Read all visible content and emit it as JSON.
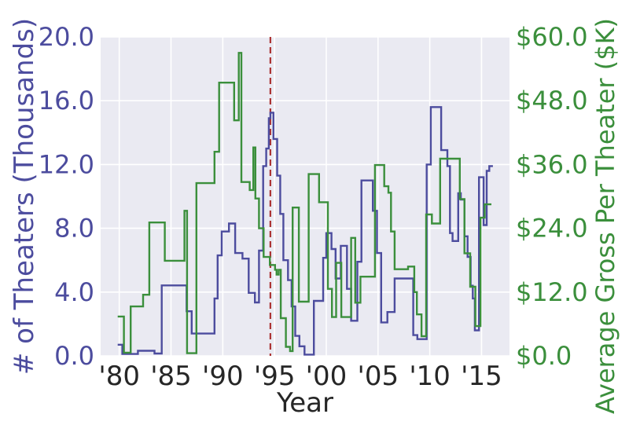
{
  "figure": {
    "background": "#ffffff",
    "plot_background": "#eaeaf2",
    "grid_color": "#ffffff"
  },
  "axes": {
    "x": {
      "label": "Year",
      "tick_years": [
        1980,
        1985,
        1990,
        1995,
        2000,
        2005,
        2010,
        2015
      ],
      "tick_labels": [
        "'80",
        "'85",
        "'90",
        "'95",
        "'00",
        "'05",
        "'10",
        "'15"
      ],
      "color": "#262626"
    },
    "left": {
      "label": "# of Theaters (Thousands)",
      "tick_values": [
        0,
        4,
        8,
        12,
        16,
        20
      ],
      "tick_labels": [
        "0.0",
        "4.0",
        "8.0",
        "12.0",
        "16.0",
        "20.0"
      ],
      "range": [
        0,
        20
      ],
      "color": "#4C4C9E"
    },
    "right": {
      "label": "Average Gross Per Theater ($K)",
      "tick_values": [
        0,
        12,
        24,
        36,
        48,
        60
      ],
      "tick_labels": [
        "$0.0",
        "$12.0",
        "$24.0",
        "$36.0",
        "$48.0",
        "$60.0"
      ],
      "range": [
        0,
        60
      ],
      "color": "#3B8F3C"
    }
  },
  "chart_data": {
    "type": "line",
    "step_mode": "post",
    "grid": true,
    "legend": false,
    "x_range": [
      1978.2,
      2017.7
    ],
    "vline": {
      "x": 1994.6,
      "color": "#AC3434",
      "style": "dashed"
    },
    "series": [
      {
        "name": "# of Theaters (Thousands)",
        "axis": "left",
        "color": "#4C4C9E",
        "points": [
          [
            1979.85,
            0.7
          ],
          [
            1980.3,
            0.12
          ],
          [
            1981.8,
            0.32
          ],
          [
            1983.4,
            0.15
          ],
          [
            1984.1,
            4.42
          ],
          [
            1986.5,
            2.8
          ],
          [
            1987.0,
            1.4
          ],
          [
            1989.2,
            3.6
          ],
          [
            1989.5,
            6.3
          ],
          [
            1989.9,
            7.8
          ],
          [
            1990.6,
            8.3
          ],
          [
            1991.2,
            6.45
          ],
          [
            1991.9,
            6.1
          ],
          [
            1992.5,
            3.95
          ],
          [
            1993.1,
            3.35
          ],
          [
            1993.5,
            6.6
          ],
          [
            1993.9,
            11.9
          ],
          [
            1994.2,
            13.0
          ],
          [
            1994.45,
            14.9
          ],
          [
            1994.6,
            15.25
          ],
          [
            1994.9,
            13.6
          ],
          [
            1995.25,
            11.3
          ],
          [
            1995.55,
            8.9
          ],
          [
            1995.85,
            6.0
          ],
          [
            1996.3,
            4.75
          ],
          [
            1996.65,
            3.1
          ],
          [
            1997.0,
            1.25
          ],
          [
            1997.4,
            0.6
          ],
          [
            1997.9,
            0.08
          ],
          [
            1998.8,
            3.45
          ],
          [
            1999.7,
            6.15
          ],
          [
            2000.0,
            7.7
          ],
          [
            2000.5,
            6.7
          ],
          [
            2000.9,
            4.85
          ],
          [
            2001.4,
            6.9
          ],
          [
            2002.0,
            4.2
          ],
          [
            2002.4,
            2.2
          ],
          [
            2003.0,
            5.9
          ],
          [
            2003.4,
            11.0
          ],
          [
            2004.5,
            9.1
          ],
          [
            2004.9,
            6.45
          ],
          [
            2005.3,
            2.1
          ],
          [
            2005.9,
            2.75
          ],
          [
            2006.6,
            4.85
          ],
          [
            2008.4,
            1.3
          ],
          [
            2008.8,
            1.05
          ],
          [
            2009.7,
            12.0
          ],
          [
            2010.1,
            15.6
          ],
          [
            2011.1,
            12.9
          ],
          [
            2011.7,
            11.9
          ],
          [
            2011.95,
            7.7
          ],
          [
            2012.2,
            7.2
          ],
          [
            2012.75,
            10.2
          ],
          [
            2013.0,
            9.8
          ],
          [
            2013.35,
            7.5
          ],
          [
            2013.65,
            6.2
          ],
          [
            2013.95,
            4.4
          ],
          [
            2014.15,
            3.6
          ],
          [
            2014.35,
            1.6
          ],
          [
            2014.75,
            11.2
          ],
          [
            2015.2,
            8.2
          ],
          [
            2015.5,
            11.6
          ],
          [
            2015.75,
            11.9
          ],
          [
            2016.1,
            11.9
          ]
        ]
      },
      {
        "name": "Average Gross Per Theater ($K)",
        "axis": "right",
        "color": "#3B8F3C",
        "points": [
          [
            1979.85,
            7.4
          ],
          [
            1980.45,
            0.6
          ],
          [
            1981.1,
            9.3
          ],
          [
            1982.3,
            11.5
          ],
          [
            1982.9,
            25.1
          ],
          [
            1984.4,
            17.9
          ],
          [
            1986.3,
            27.3
          ],
          [
            1986.55,
            0.5
          ],
          [
            1987.45,
            32.5
          ],
          [
            1989.2,
            38.4
          ],
          [
            1989.65,
            51.4
          ],
          [
            1991.1,
            44.3
          ],
          [
            1991.55,
            57.0
          ],
          [
            1991.8,
            32.7
          ],
          [
            1992.6,
            31.2
          ],
          [
            1992.95,
            39.2
          ],
          [
            1993.15,
            29.6
          ],
          [
            1993.5,
            24.0
          ],
          [
            1993.95,
            18.6
          ],
          [
            1994.55,
            17.1
          ],
          [
            1995.05,
            16.2
          ],
          [
            1995.2,
            15.3
          ],
          [
            1995.4,
            16.2
          ],
          [
            1995.6,
            7.1
          ],
          [
            1996.1,
            1.7
          ],
          [
            1996.5,
            0.9
          ],
          [
            1996.75,
            27.9
          ],
          [
            1997.35,
            10.2
          ],
          [
            1998.3,
            34.2
          ],
          [
            1999.3,
            28.9
          ],
          [
            2000.15,
            12.6
          ],
          [
            2000.55,
            7.3
          ],
          [
            2000.95,
            17.5
          ],
          [
            2001.45,
            7.3
          ],
          [
            2002.4,
            22.2
          ],
          [
            2002.8,
            10.0
          ],
          [
            2003.3,
            14.9
          ],
          [
            2004.7,
            35.9
          ],
          [
            2005.6,
            31.9
          ],
          [
            2006.0,
            30.7
          ],
          [
            2006.25,
            23.4
          ],
          [
            2006.6,
            16.3
          ],
          [
            2007.9,
            16.8
          ],
          [
            2008.5,
            12.0
          ],
          [
            2008.75,
            7.8
          ],
          [
            2009.2,
            3.7
          ],
          [
            2009.65,
            26.6
          ],
          [
            2010.2,
            24.9
          ],
          [
            2011.0,
            37.1
          ],
          [
            2012.9,
            29.5
          ],
          [
            2013.35,
            19.3
          ],
          [
            2013.9,
            13.0
          ],
          [
            2014.4,
            5.6
          ],
          [
            2014.9,
            26.0
          ],
          [
            2015.3,
            28.5
          ],
          [
            2015.95,
            28.5
          ]
        ]
      }
    ]
  }
}
